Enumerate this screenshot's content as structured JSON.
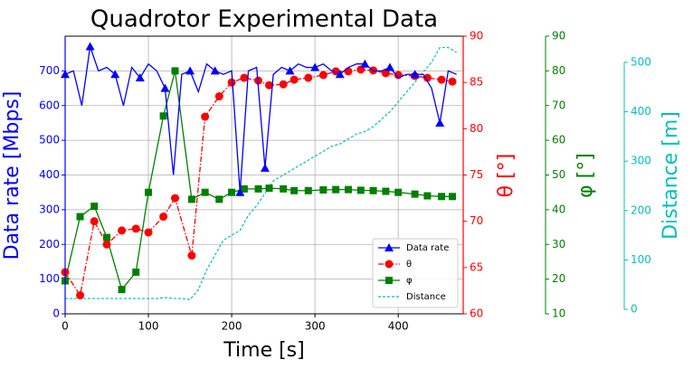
{
  "chart_data": {
    "type": "line",
    "title": "Quadrotor Experimental Data",
    "x_label": "Time [s]",
    "y_label": "Data rate [Mbps]",
    "y2_label": "θ [°]",
    "y3_label": "φ [°]",
    "y4_label": "Distance [m]",
    "xlim": [
      0,
      478
    ],
    "xticks": [
      0,
      100,
      200,
      300,
      400
    ],
    "ylim": [
      0,
      800
    ],
    "yticks": [
      0,
      100,
      200,
      300,
      400,
      500,
      600,
      700
    ],
    "y2lim": [
      60,
      90
    ],
    "y2ticks": [
      60,
      65,
      70,
      75,
      80,
      85,
      90
    ],
    "y3lim": [
      10,
      90
    ],
    "y3ticks": [
      10,
      20,
      30,
      40,
      50,
      60,
      70,
      80,
      90
    ],
    "y4lim": [
      -9,
      553
    ],
    "y4ticks": [
      0,
      100,
      200,
      300,
      400,
      500
    ],
    "grid": true,
    "legend": "lower right",
    "series": [
      {
        "name": "Data rate",
        "color": "#0000ff",
        "axis": "y",
        "x": [
          0,
          10,
          20,
          30,
          40,
          50,
          60,
          70,
          80,
          90,
          100,
          110,
          120,
          130,
          140,
          150,
          160,
          170,
          180,
          190,
          200,
          210,
          220,
          230,
          240,
          250,
          260,
          270,
          280,
          290,
          300,
          310,
          320,
          330,
          340,
          350,
          360,
          370,
          380,
          390,
          400,
          410,
          420,
          430,
          440,
          450,
          460,
          470
        ],
        "values": [
          690,
          700,
          600,
          770,
          700,
          710,
          690,
          600,
          710,
          680,
          720,
          700,
          650,
          400,
          690,
          700,
          640,
          720,
          700,
          690,
          700,
          350,
          700,
          710,
          420,
          690,
          710,
          700,
          720,
          710,
          710,
          720,
          700,
          690,
          710,
          720,
          720,
          700,
          700,
          710,
          680,
          690,
          690,
          690,
          650,
          550,
          700,
          690
        ]
      },
      {
        "name": "θ",
        "color": "#ff0000",
        "axis": "y2",
        "x": [
          0,
          18,
          35,
          50,
          68,
          85,
          100,
          118,
          132,
          152,
          168,
          185,
          200,
          215,
          232,
          245,
          262,
          275,
          292,
          310,
          325,
          340,
          355,
          370,
          385,
          400,
          420,
          435,
          452,
          465
        ],
        "values": [
          64.5,
          62,
          70,
          67.5,
          69,
          69.2,
          68.8,
          70.5,
          72.5,
          66.3,
          81.3,
          83.5,
          85,
          85.5,
          85.2,
          84.7,
          84.8,
          85.3,
          85.5,
          85.8,
          86.2,
          86.2,
          86.4,
          86.3,
          86,
          85.8,
          85.7,
          85.5,
          85.3,
          85.1
        ]
      },
      {
        "name": "φ",
        "color": "#008000",
        "axis": "y3",
        "x": [
          0,
          18,
          35,
          50,
          68,
          85,
          100,
          118,
          132,
          152,
          168,
          185,
          200,
          215,
          232,
          245,
          262,
          275,
          292,
          310,
          325,
          340,
          355,
          370,
          385,
          400,
          420,
          435,
          452,
          465
        ],
        "values": [
          19.5,
          38,
          41,
          32,
          17,
          22,
          45,
          67,
          80,
          43,
          45,
          43,
          45,
          46,
          46,
          46.2,
          46,
          45.5,
          45.5,
          45.7,
          45.8,
          45.8,
          45.6,
          45.5,
          45.3,
          45,
          44.5,
          44,
          43.8,
          43.8
        ]
      },
      {
        "name": "Distance",
        "color": "#00bfbf",
        "axis": "y4",
        "x": [
          0,
          10,
          20,
          30,
          40,
          50,
          60,
          70,
          80,
          90,
          100,
          110,
          120,
          130,
          140,
          150,
          160,
          170,
          180,
          190,
          200,
          210,
          220,
          230,
          240,
          250,
          260,
          270,
          280,
          290,
          300,
          310,
          320,
          330,
          340,
          350,
          360,
          370,
          380,
          390,
          400,
          410,
          420,
          430,
          440,
          450,
          460,
          470
        ],
        "values": [
          22,
          22,
          22,
          22,
          22,
          22,
          22,
          22,
          22,
          22,
          22,
          22,
          24,
          22,
          22,
          20,
          40,
          80,
          110,
          140,
          150,
          160,
          190,
          210,
          235,
          260,
          270,
          280,
          290,
          300,
          310,
          320,
          330,
          335,
          345,
          355,
          360,
          370,
          385,
          400,
          420,
          440,
          460,
          480,
          500,
          530,
          530,
          520
        ]
      }
    ]
  }
}
